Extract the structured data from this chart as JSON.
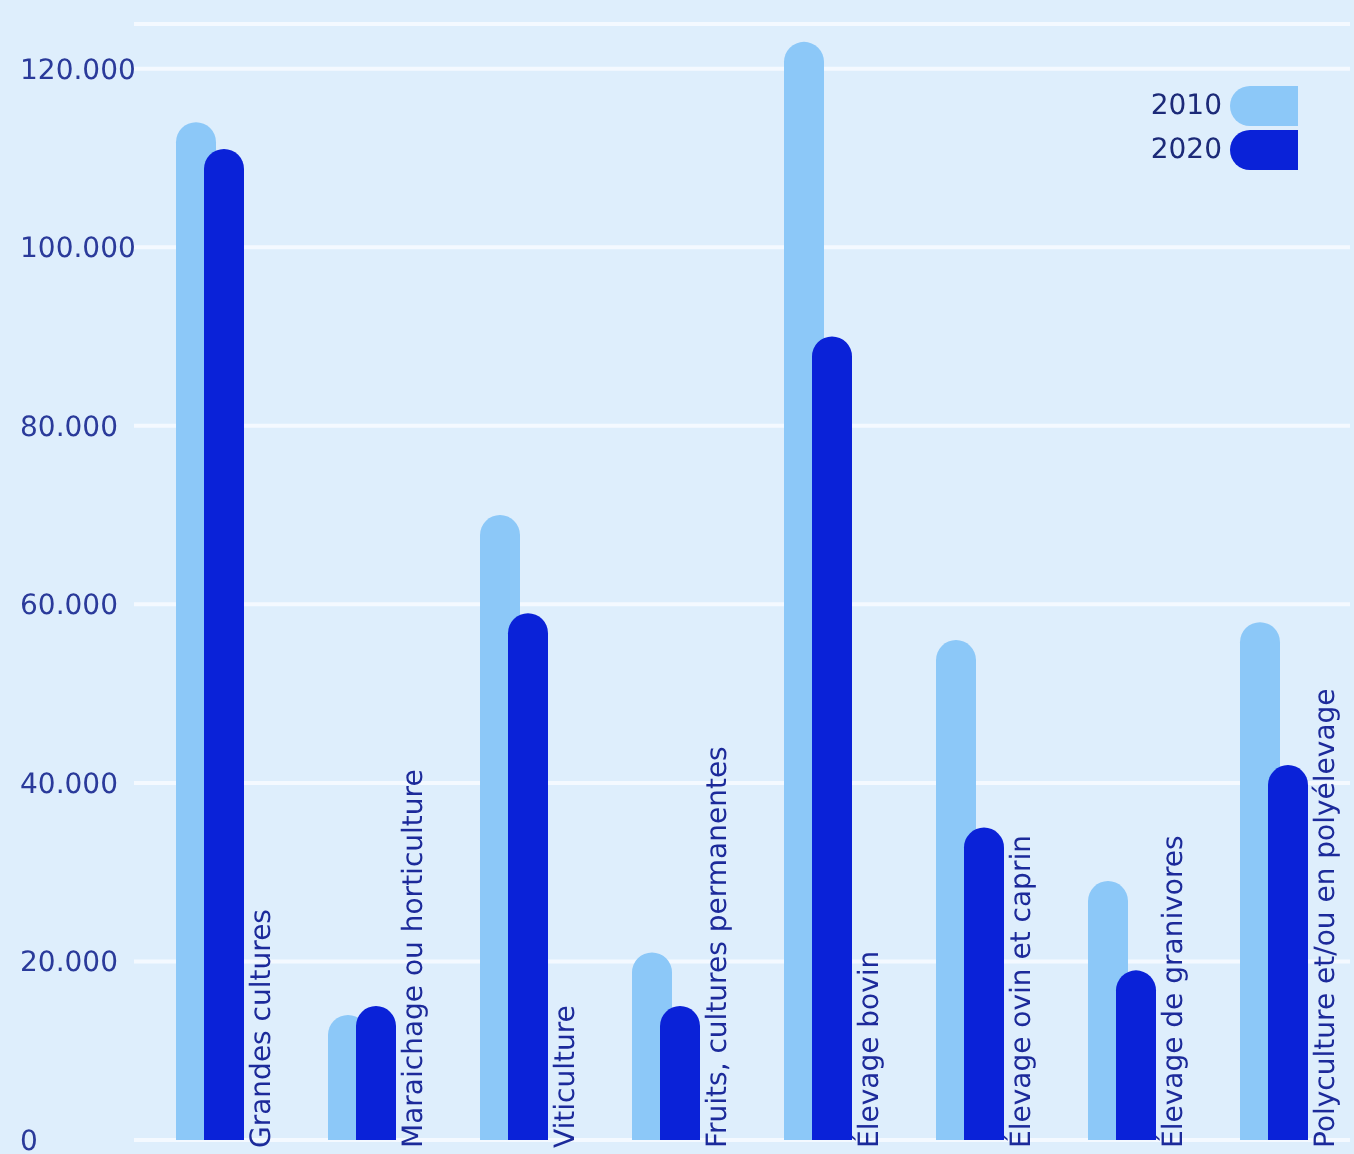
{
  "chart_data": {
    "type": "bar",
    "categories": [
      "Grandes cultures",
      "Maraichage ou horticulture",
      "Viticulture",
      "Fruits, cultures permanentes",
      "Élevage bovin",
      "Élevage ovin et caprin",
      "Élevage de granivores",
      "Polyculture et/ou en polyélevage"
    ],
    "series": [
      {
        "name": "2010",
        "color": "#8cc8f8",
        "values": [
          114000,
          14000,
          70000,
          21000,
          123000,
          56000,
          29000,
          58000
        ]
      },
      {
        "name": "2020",
        "color": "#0a22d8",
        "values": [
          111000,
          15000,
          59000,
          15000,
          90000,
          35000,
          19000,
          42000
        ]
      }
    ],
    "ylim": [
      0,
      125000
    ],
    "yticks": [
      0,
      {
        "value": 20000,
        "label": "20.000"
      },
      {
        "value": 40000,
        "label": "40.000"
      },
      {
        "value": 60000,
        "label": "60.000"
      },
      {
        "value": 80000,
        "label": "80.000"
      },
      {
        "value": 100000,
        "label": "100.000"
      },
      {
        "value": 120000,
        "label": "120.000"
      }
    ],
    "grid": "y",
    "legend": "top right"
  }
}
